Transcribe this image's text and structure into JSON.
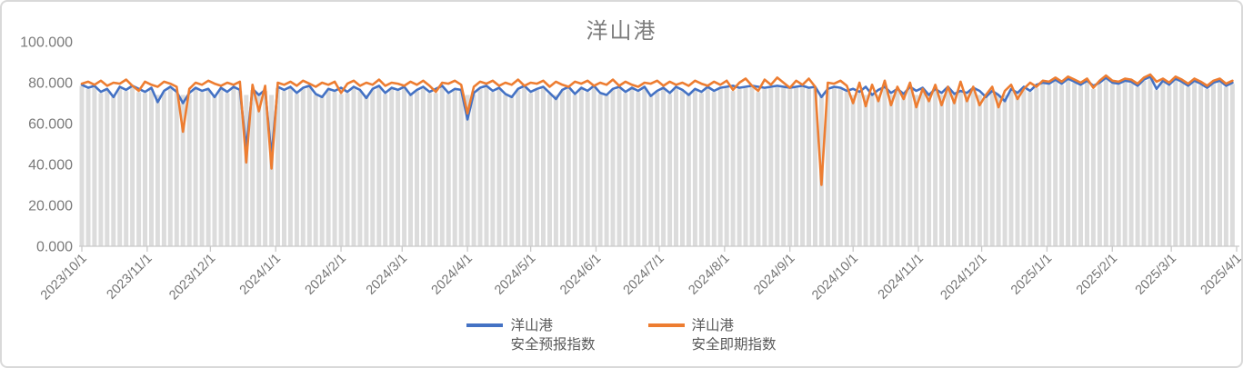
{
  "title": "洋山港",
  "colors": {
    "series_forecast": "#4472C4",
    "series_spot": "#ED7D31",
    "background_bars": "#dcdcdc",
    "axis_line": "#c9c9c9",
    "title_text": "#7c7c7c",
    "tick_text": "#757575",
    "legend_text": "#595959"
  },
  "legend": {
    "items": [
      {
        "line1": "洋山港",
        "line2": "安全预报指数",
        "color": "#4472C4"
      },
      {
        "line1": "洋山港",
        "line2": "安全即期指数",
        "color": "#ED7D31"
      }
    ]
  },
  "chart_data": {
    "type": "line",
    "title": "洋山港",
    "xlabel": "",
    "ylabel": "",
    "ylim": [
      0,
      100
    ],
    "grid": false,
    "legend_position": "bottom",
    "start_date": "2023/10/1",
    "end_date": "2025/4/1",
    "step_days": 3,
    "y_ticks": [
      "100.000",
      "80.000",
      "60.000",
      "40.000",
      "20.000",
      "0.000"
    ],
    "x_ticks": [
      "2023/10/1",
      "2023/11/1",
      "2023/12/1",
      "2024/1/1",
      "2024/2/1",
      "2024/3/1",
      "2024/4/1",
      "2024/5/1",
      "2024/6/1",
      "2024/7/1",
      "2024/8/1",
      "2024/9/1",
      "2024/10/1",
      "2024/11/1",
      "2024/12/1",
      "2025/1/1",
      "2025/2/1",
      "2025/3/1",
      "2025/4/1"
    ],
    "notable_events": [
      {
        "date": "2023/11/18",
        "note": "安全即期指数 dip to ~56"
      },
      {
        "date": "2023/12/18",
        "note": "both dip, ~41 (orange) / ~48 (blue)"
      },
      {
        "date": "2023/12/30",
        "note": "both dip, ~38 (orange) / ~44 (blue)"
      },
      {
        "date": "2024/4/2",
        "note": "dip to ~62-65"
      },
      {
        "date": "2024/9/17",
        "note": "安全即期指数 dip to ~30"
      },
      {
        "date": "2024/10-11",
        "note": "orange oscillates 68-81"
      },
      {
        "date": "2025/1-4",
        "note": "both elevated ~79-84"
      }
    ],
    "series": [
      {
        "name": "洋山港安全预报指数",
        "color": "#4472C4",
        "values": [
          79,
          77.5,
          78.5,
          75.5,
          77,
          73,
          78,
          76.5,
          78.5,
          77,
          75.5,
          77.5,
          70.5,
          76,
          78,
          75.5,
          70,
          75,
          77.5,
          76,
          77,
          73,
          77.5,
          75.5,
          78,
          76.5,
          48,
          77,
          74,
          76.5,
          44,
          78,
          76.5,
          78,
          75,
          77.5,
          78.5,
          74.5,
          73,
          77,
          76,
          77.5,
          75.5,
          78,
          76.5,
          72.5,
          77,
          78.5,
          75,
          77.5,
          76.5,
          78,
          74,
          76.5,
          78,
          75.5,
          77,
          78.5,
          75,
          77,
          76.5,
          62,
          75,
          77.5,
          78.5,
          76,
          77.5,
          74.5,
          73,
          77,
          78.5,
          75.5,
          77,
          78,
          75,
          72,
          76.5,
          78,
          74.5,
          77.5,
          76,
          78.5,
          75,
          74,
          77,
          78,
          75.5,
          77.5,
          76,
          78,
          73.5,
          76,
          77.5,
          75,
          78,
          76.5,
          74,
          77,
          75.5,
          78,
          76,
          77.5,
          78,
          78.5,
          77.5,
          78,
          78.5,
          78,
          77.5,
          78,
          78.5,
          78,
          77.5,
          78,
          78.5,
          77.5,
          78,
          73,
          77,
          78,
          77.5,
          76,
          77,
          75.5,
          78,
          74,
          76.5,
          78,
          75,
          77,
          74.5,
          78,
          76,
          77.5,
          74,
          77,
          75,
          78,
          74.5,
          76,
          75,
          77.5,
          76,
          73,
          76,
          74,
          71,
          77,
          75,
          78,
          76,
          79,
          80,
          79.5,
          81.5,
          79.5,
          82,
          80.5,
          79,
          81,
          78.5,
          80,
          82.5,
          80,
          79.5,
          81,
          80.5,
          78.5,
          81.5,
          83,
          77,
          81,
          79,
          82,
          80.5,
          78.5,
          81,
          79.5,
          77.5,
          80,
          81,
          78.5,
          80
        ]
      },
      {
        "name": "洋山港安全即期指数",
        "color": "#ED7D31",
        "values": [
          79.5,
          80.5,
          79,
          81,
          78.5,
          80,
          79.5,
          81.5,
          78.5,
          76,
          80.5,
          79,
          78,
          80.5,
          79.5,
          78,
          56,
          77,
          80,
          79,
          81,
          79.5,
          78.5,
          80,
          79,
          80.5,
          41,
          79,
          66,
          78.5,
          38,
          80,
          79,
          80.5,
          78.5,
          81,
          79.5,
          78,
          80,
          79,
          80.5,
          75,
          79.5,
          81,
          78.5,
          80,
          79,
          81.5,
          78.5,
          80,
          79.5,
          78.5,
          80.5,
          79,
          81,
          78.5,
          75.5,
          80,
          79.5,
          81,
          79,
          65,
          78,
          80.5,
          79.5,
          81,
          78.5,
          80,
          79,
          81.5,
          78.5,
          80,
          79.5,
          81,
          78,
          80.5,
          79,
          78,
          80.5,
          79.5,
          81,
          78.5,
          80,
          79,
          81.5,
          78.5,
          80.5,
          79,
          78,
          80,
          79.5,
          81,
          78.5,
          80.5,
          79,
          80,
          78.5,
          81,
          79.5,
          78.5,
          80.5,
          79,
          81,
          76.5,
          80,
          82,
          78.5,
          76,
          81.5,
          79,
          82.5,
          80,
          77.5,
          81,
          79,
          82,
          78,
          30,
          80,
          79.5,
          81,
          78.5,
          70,
          80,
          68.5,
          79,
          71,
          81,
          69,
          78,
          72,
          80,
          68,
          77,
          71,
          79,
          69,
          78,
          70,
          80.5,
          71,
          78,
          69,
          74,
          78,
          68,
          76,
          79,
          72,
          77,
          80,
          78,
          81,
          80.5,
          82.5,
          80.5,
          83,
          81.5,
          80,
          82,
          77.5,
          81,
          83.5,
          81,
          80.5,
          82,
          81.5,
          79.5,
          82.5,
          84,
          80.5,
          82,
          80,
          83,
          81.5,
          79.5,
          82,
          80.5,
          78.5,
          81,
          82,
          79.5,
          81
        ]
      }
    ]
  }
}
